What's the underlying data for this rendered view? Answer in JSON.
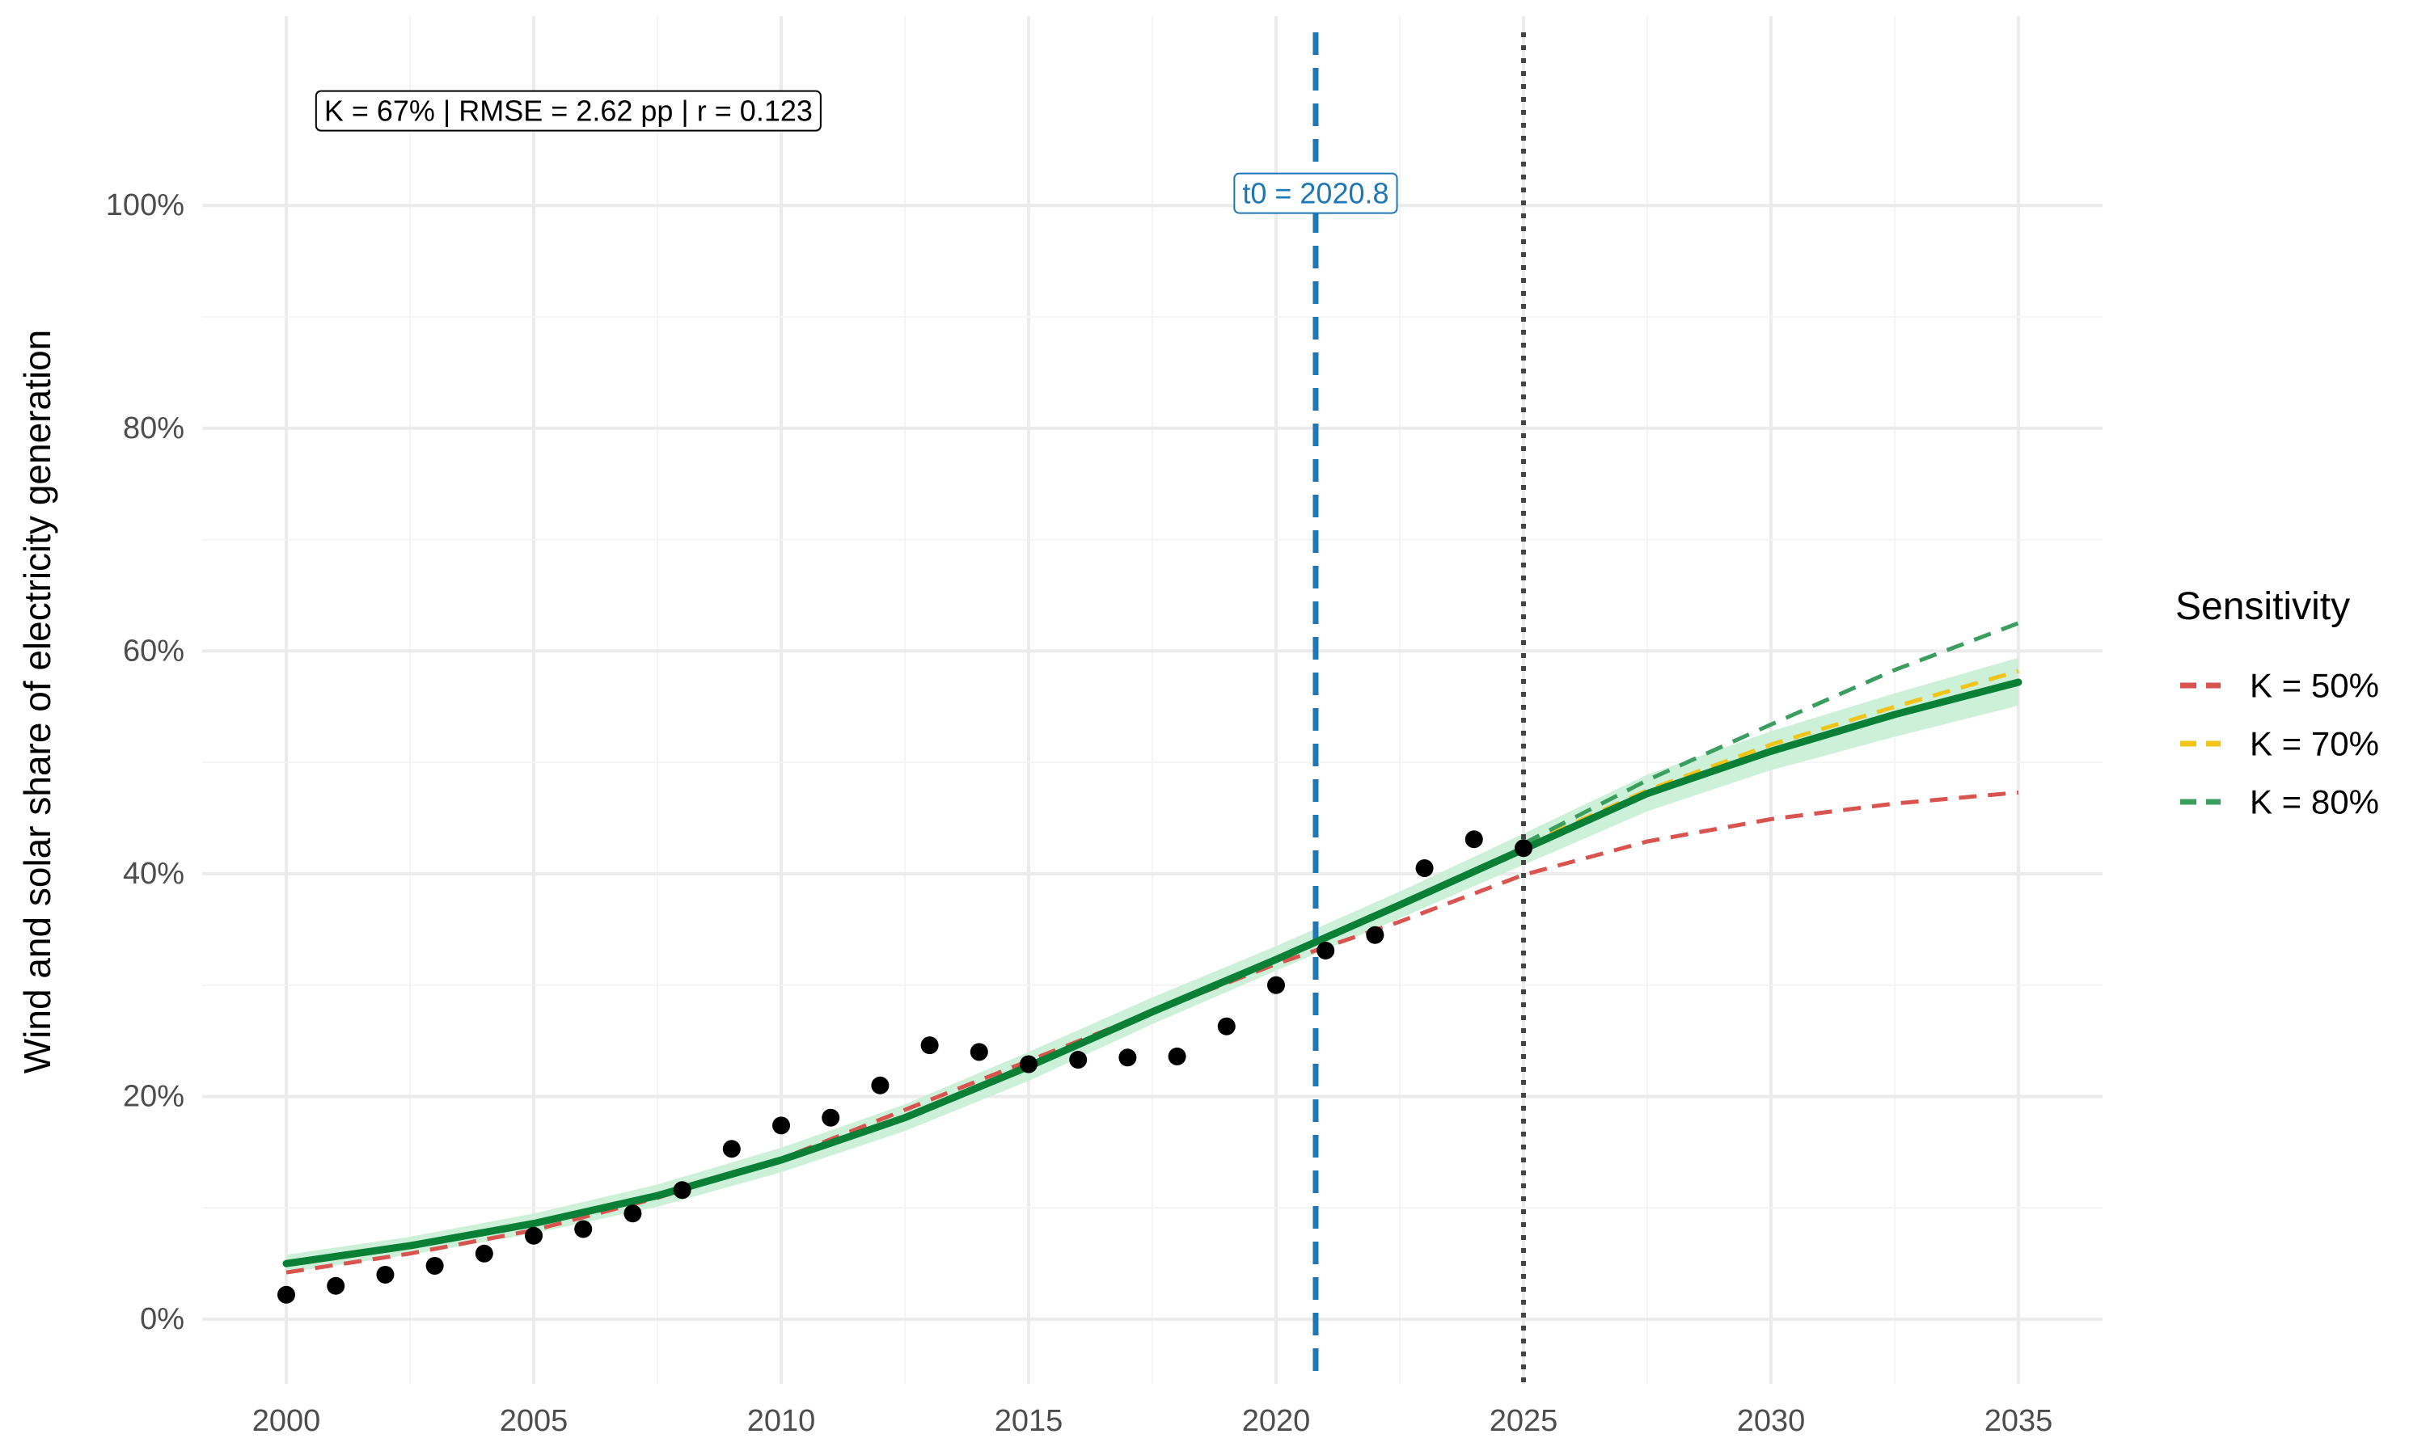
{
  "chart_data": {
    "type": "line",
    "title": "",
    "xlabel": "",
    "ylabel": "Wind and solar share of electricity generation",
    "xlim": [
      1998.3,
      2036.7
    ],
    "ylim": [
      -5.8,
      117
    ],
    "x_ticks": [
      2000,
      2005,
      2010,
      2015,
      2020,
      2025,
      2030,
      2035
    ],
    "x_tick_labels": [
      "2000",
      "2005",
      "2010",
      "2015",
      "2020",
      "2025",
      "2030",
      "2035"
    ],
    "y_ticks": [
      0,
      20,
      40,
      60,
      80,
      100
    ],
    "y_tick_labels": [
      "0%",
      "20%",
      "40%",
      "60%",
      "80%",
      "100%"
    ],
    "grid": true,
    "observed": {
      "x": [
        2000,
        2001,
        2002,
        2003,
        2004,
        2005,
        2006,
        2007,
        2008,
        2009,
        2010,
        2011,
        2012,
        2013,
        2014,
        2015,
        2016,
        2017,
        2018,
        2019,
        2020,
        2021,
        2022,
        2023,
        2024,
        2025
      ],
      "y": [
        2.2,
        3.0,
        4.0,
        4.8,
        5.9,
        7.5,
        8.1,
        9.5,
        11.6,
        15.3,
        17.4,
        18.1,
        21.0,
        24.6,
        24.0,
        22.9,
        23.3,
        23.5,
        23.6,
        26.3,
        30.0,
        33.1,
        34.5,
        40.5,
        43.1,
        42.3
      ],
      "color": "#000000"
    },
    "fit": {
      "name": "K = 67%",
      "color": "#0a7f36",
      "band_color": "#c9efd6",
      "x": [
        2000,
        2002.5,
        2005,
        2007.5,
        2010,
        2012.5,
        2015,
        2017.5,
        2020,
        2022.5,
        2025,
        2027.5,
        2030,
        2032.5,
        2035
      ],
      "y": [
        5.0,
        6.6,
        8.6,
        11.1,
        14.3,
        18.1,
        22.7,
        27.6,
        32.3,
        37.2,
        42.2,
        47.2,
        51.0,
        54.3,
        57.2
      ],
      "lower": [
        4.2,
        5.8,
        7.7,
        10.1,
        13.2,
        16.9,
        21.4,
        26.5,
        31.3,
        36.0,
        40.8,
        45.6,
        49.3,
        52.3,
        55.1
      ],
      "upper": [
        5.8,
        7.4,
        9.5,
        12.1,
        15.4,
        19.3,
        24.0,
        28.9,
        33.5,
        38.4,
        43.6,
        48.9,
        52.8,
        56.2,
        59.4
      ]
    },
    "legend": {
      "title": "Sensitivity",
      "position": "right"
    },
    "series": [
      {
        "name": "K = 50%",
        "color": "#d9534f",
        "x": [
          2000,
          2002.5,
          2005,
          2007.5,
          2010,
          2012.5,
          2015,
          2017.5,
          2020,
          2022.5,
          2025,
          2027.5,
          2030,
          2032.5,
          2035
        ],
        "y": [
          4.2,
          5.9,
          8.0,
          10.9,
          14.4,
          18.8,
          23.2,
          27.6,
          31.9,
          35.7,
          39.9,
          42.9,
          44.9,
          46.3,
          47.3
        ]
      },
      {
        "name": "K = 70%",
        "color": "#f0c419",
        "x": [
          2025,
          2027.5,
          2030,
          2032.5,
          2035
        ],
        "y": [
          42.5,
          47.5,
          51.6,
          55.0,
          58.2
        ]
      },
      {
        "name": "K = 80%",
        "color": "#3a9e5f",
        "x": [
          2025,
          2027.5,
          2030,
          2032.5,
          2035
        ],
        "y": [
          42.7,
          48.4,
          53.4,
          58.3,
          62.5
        ]
      }
    ],
    "vlines": [
      {
        "x": 2020.8,
        "color": "#1f77b4",
        "style": "dashed"
      },
      {
        "x": 2025,
        "color": "#444444",
        "style": "dotted"
      }
    ],
    "annotations": {
      "stats_label": "K = 67% | RMSE = 2.62 pp | r = 0.123",
      "stats_x": 2005.7,
      "stats_y": 108.5,
      "t0_label": "t0 = 2020.8",
      "t0_x": 2020.8,
      "t0_y": 101.1
    }
  }
}
